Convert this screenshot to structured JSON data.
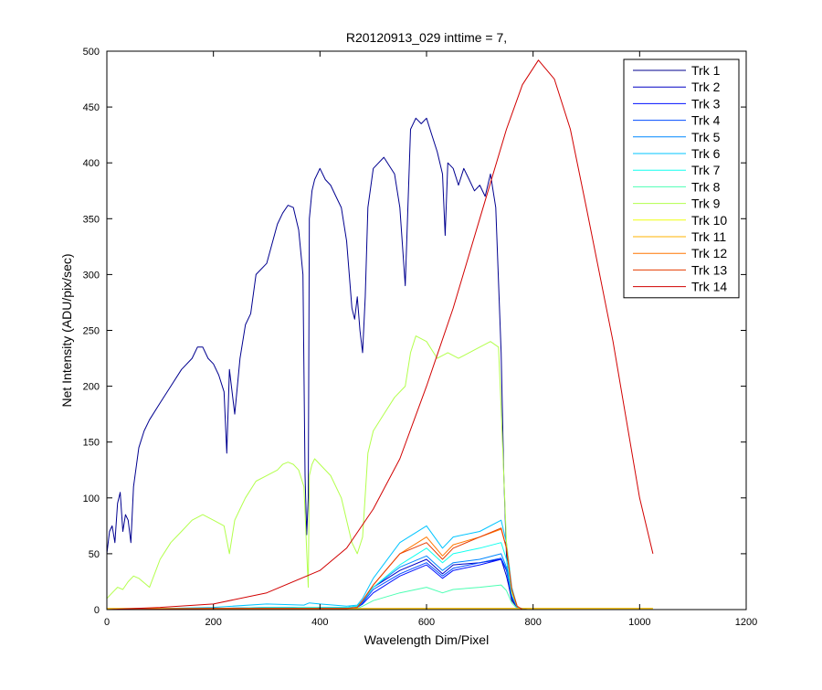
{
  "chart_data": {
    "type": "line",
    "title": "R20120913_029 inttime = 7,",
    "xlabel": "Wavelength Dim/Pixel",
    "ylabel": "Net Intensity (ADU/pix/sec)",
    "xlim": [
      0,
      1200
    ],
    "ylim": [
      0,
      500
    ],
    "xticks": [
      0,
      200,
      400,
      600,
      800,
      1000,
      1200
    ],
    "yticks": [
      0,
      50,
      100,
      150,
      200,
      250,
      300,
      350,
      400,
      450,
      500
    ],
    "grid": false,
    "legend_position": "top-right",
    "series": [
      {
        "name": "Trk 1",
        "color": "#00008f",
        "x": [
          0,
          5,
          10,
          15,
          20,
          25,
          30,
          35,
          40,
          45,
          50,
          60,
          70,
          80,
          100,
          120,
          140,
          160,
          170,
          180,
          190,
          200,
          210,
          220,
          225,
          230,
          240,
          250,
          260,
          270,
          280,
          300,
          320,
          330,
          340,
          350,
          360,
          368,
          372,
          375,
          378,
          380,
          385,
          390,
          400,
          410,
          420,
          430,
          440,
          450,
          460,
          465,
          470,
          475,
          480,
          485,
          490,
          500,
          520,
          540,
          550,
          560,
          570,
          580,
          590,
          600,
          610,
          620,
          630,
          635,
          640,
          650,
          660,
          670,
          680,
          690,
          700,
          710,
          720,
          730,
          740,
          745,
          750,
          755,
          760,
          770,
          780,
          790,
          800,
          850,
          900,
          950,
          1000,
          1025
        ],
        "y": [
          50,
          70,
          75,
          60,
          95,
          105,
          70,
          85,
          80,
          60,
          110,
          145,
          160,
          170,
          185,
          200,
          215,
          225,
          235,
          235,
          225,
          220,
          210,
          195,
          140,
          215,
          175,
          225,
          255,
          265,
          300,
          310,
          345,
          355,
          362,
          360,
          340,
          300,
          120,
          67,
          100,
          350,
          375,
          385,
          395,
          385,
          380,
          370,
          360,
          330,
          270,
          260,
          280,
          250,
          230,
          280,
          360,
          395,
          405,
          390,
          360,
          290,
          430,
          440,
          435,
          440,
          425,
          410,
          390,
          335,
          400,
          395,
          380,
          395,
          385,
          375,
          380,
          370,
          390,
          360,
          230,
          120,
          50,
          20,
          8,
          2,
          1,
          0,
          0,
          0,
          0,
          0,
          0,
          0
        ]
      },
      {
        "name": "Trk 2",
        "color": "#0000c4",
        "x": [
          0,
          100,
          200,
          300,
          350,
          380,
          400,
          450,
          470,
          480,
          500,
          550,
          600,
          630,
          650,
          700,
          740,
          750,
          760,
          770,
          780,
          800,
          1025
        ],
        "y": [
          0,
          0.5,
          1,
          2,
          2,
          1,
          2,
          2,
          3,
          8,
          20,
          35,
          45,
          32,
          40,
          42,
          45,
          30,
          10,
          2,
          0,
          0,
          0
        ]
      },
      {
        "name": "Trk 3",
        "color": "#0010ff",
        "x": [
          0,
          200,
          300,
          380,
          450,
          470,
          480,
          500,
          550,
          600,
          630,
          650,
          700,
          740,
          750,
          760,
          770,
          780,
          800,
          1025
        ],
        "y": [
          0,
          1,
          1,
          1,
          1,
          2,
          5,
          15,
          30,
          40,
          28,
          35,
          40,
          45,
          35,
          12,
          2,
          0,
          0,
          0
        ]
      },
      {
        "name": "Trk 4",
        "color": "#004cff",
        "x": [
          0,
          200,
          300,
          380,
          450,
          470,
          480,
          500,
          550,
          600,
          630,
          650,
          700,
          740,
          750,
          760,
          770,
          780,
          800,
          1025
        ],
        "y": [
          0,
          1,
          1,
          1,
          1,
          2,
          6,
          18,
          32,
          42,
          30,
          37,
          42,
          46,
          36,
          12,
          2,
          0,
          0,
          0
        ]
      },
      {
        "name": "Trk 5",
        "color": "#0088ff",
        "x": [
          0,
          200,
          300,
          380,
          450,
          470,
          480,
          500,
          550,
          600,
          630,
          650,
          700,
          740,
          750,
          760,
          770,
          780,
          800,
          1025
        ],
        "y": [
          0,
          1,
          1,
          1,
          1,
          2,
          7,
          20,
          38,
          48,
          35,
          42,
          45,
          50,
          38,
          12,
          2,
          0,
          0,
          0
        ]
      },
      {
        "name": "Trk 6",
        "color": "#00c4ff",
        "x": [
          0,
          200,
          300,
          370,
          380,
          400,
          450,
          470,
          480,
          500,
          550,
          600,
          630,
          650,
          700,
          740,
          750,
          760,
          770,
          780,
          800,
          1025
        ],
        "y": [
          0,
          2,
          5,
          4,
          6,
          5,
          3,
          4,
          10,
          28,
          60,
          75,
          55,
          65,
          70,
          80,
          60,
          20,
          3,
          0,
          0,
          0
        ]
      },
      {
        "name": "Trk 7",
        "color": "#10ffef",
        "x": [
          0,
          200,
          300,
          380,
          450,
          470,
          480,
          500,
          550,
          600,
          630,
          650,
          700,
          740,
          750,
          760,
          770,
          780,
          800,
          1025
        ],
        "y": [
          0,
          1,
          2,
          2,
          2,
          3,
          8,
          20,
          40,
          55,
          42,
          50,
          55,
          60,
          45,
          15,
          3,
          0,
          0,
          0
        ]
      },
      {
        "name": "Trk 8",
        "color": "#4cffb3",
        "x": [
          0,
          200,
          300,
          380,
          450,
          470,
          480,
          500,
          550,
          600,
          630,
          650,
          700,
          740,
          750,
          760,
          770,
          780,
          800,
          1025
        ],
        "y": [
          0,
          0.5,
          1,
          1,
          1,
          1,
          3,
          8,
          15,
          20,
          15,
          18,
          20,
          22,
          17,
          6,
          1,
          0,
          0,
          0
        ]
      },
      {
        "name": "Trk 9",
        "color": "#b3ff4c",
        "x": [
          0,
          10,
          20,
          30,
          40,
          50,
          60,
          80,
          100,
          120,
          140,
          160,
          180,
          200,
          220,
          230,
          240,
          250,
          260,
          280,
          300,
          320,
          330,
          340,
          350,
          360,
          370,
          378,
          380,
          385,
          390,
          400,
          420,
          440,
          460,
          470,
          480,
          490,
          500,
          520,
          540,
          560,
          570,
          580,
          600,
          620,
          640,
          660,
          680,
          700,
          720,
          735,
          740,
          745,
          750,
          760,
          770,
          780,
          800,
          1025
        ],
        "y": [
          10,
          15,
          20,
          18,
          25,
          30,
          28,
          20,
          45,
          60,
          70,
          80,
          85,
          80,
          75,
          50,
          80,
          90,
          100,
          115,
          120,
          125,
          130,
          132,
          130,
          125,
          110,
          20,
          120,
          130,
          135,
          130,
          120,
          100,
          60,
          50,
          65,
          140,
          160,
          175,
          190,
          200,
          230,
          245,
          240,
          225,
          230,
          225,
          230,
          235,
          240,
          235,
          180,
          120,
          60,
          15,
          3,
          0,
          0,
          0
        ]
      },
      {
        "name": "Trk 10",
        "color": "#efff10",
        "x": [
          0,
          200,
          400,
          600,
          800,
          1000,
          1025
        ],
        "y": [
          0.5,
          0.5,
          0.5,
          1,
          1,
          1,
          1
        ]
      },
      {
        "name": "Trk 11",
        "color": "#ffb300",
        "x": [
          0,
          200,
          400,
          600,
          800,
          1000,
          1025
        ],
        "y": [
          1,
          1,
          1,
          1,
          1,
          1,
          1
        ]
      },
      {
        "name": "Trk 12",
        "color": "#ff7700",
        "x": [
          0,
          200,
          300,
          380,
          450,
          470,
          480,
          500,
          550,
          600,
          630,
          650,
          700,
          740,
          750,
          760,
          770,
          780,
          800,
          1025
        ],
        "y": [
          0,
          1,
          1,
          1,
          1,
          2,
          8,
          22,
          50,
          65,
          48,
          58,
          65,
          72,
          55,
          18,
          3,
          0,
          0,
          0
        ]
      },
      {
        "name": "Trk 13",
        "color": "#e63b00",
        "x": [
          0,
          200,
          300,
          380,
          450,
          470,
          480,
          500,
          550,
          600,
          630,
          650,
          700,
          740,
          750,
          760,
          770,
          780,
          800,
          1025
        ],
        "y": [
          0,
          1,
          1,
          1,
          1,
          2,
          8,
          22,
          50,
          60,
          45,
          55,
          65,
          73,
          55,
          18,
          3,
          0,
          0,
          0
        ]
      },
      {
        "name": "Trk 14",
        "color": "#d10000",
        "x": [
          0,
          100,
          200,
          300,
          400,
          450,
          500,
          550,
          600,
          650,
          700,
          750,
          780,
          810,
          840,
          870,
          900,
          950,
          1000,
          1025
        ],
        "y": [
          0,
          2,
          5,
          15,
          35,
          55,
          90,
          135,
          200,
          270,
          350,
          430,
          470,
          492,
          475,
          430,
          360,
          240,
          100,
          50
        ]
      }
    ]
  }
}
